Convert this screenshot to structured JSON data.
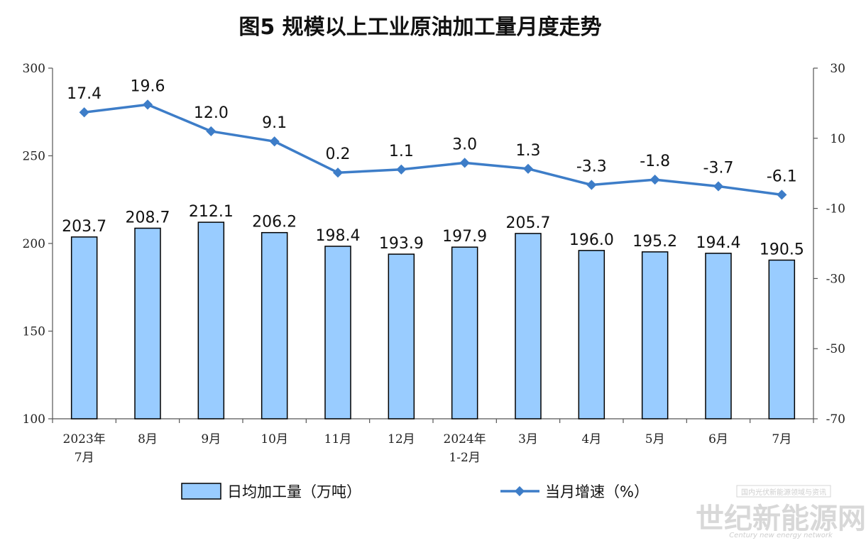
{
  "chart_data": {
    "type": "bar",
    "title": "图5  规模以上工业原油加工量月度走势",
    "categories": [
      [
        "2023年",
        "7月"
      ],
      [
        "8月"
      ],
      [
        "9月"
      ],
      [
        "10月"
      ],
      [
        "11月"
      ],
      [
        "12月"
      ],
      [
        "2024年",
        "1-2月"
      ],
      [
        "3月"
      ],
      [
        "4月"
      ],
      [
        "5月"
      ],
      [
        "6月"
      ],
      [
        "7月"
      ]
    ],
    "series": [
      {
        "name": "日均加工量（万吨）",
        "type": "bar",
        "axis": "left",
        "color": "#99ccff",
        "values": [
          203.7,
          208.7,
          212.1,
          206.2,
          198.4,
          193.9,
          197.9,
          205.7,
          196.0,
          195.2,
          194.4,
          190.5
        ],
        "labels": [
          "203.7",
          "208.7",
          "212.1",
          "206.2",
          "198.4",
          "193.9",
          "197.9",
          "205.7",
          "196.0",
          "195.2",
          "194.4",
          "190.5"
        ]
      },
      {
        "name": "当月增速（%）",
        "type": "line",
        "axis": "right",
        "color": "#3d7dc8",
        "values": [
          17.4,
          19.6,
          12.0,
          9.1,
          0.2,
          1.1,
          3.0,
          1.3,
          -3.3,
          -1.8,
          -3.7,
          -6.1
        ],
        "labels": [
          "17.4",
          "19.6",
          "12.0",
          "9.1",
          "0.2",
          "1.1",
          "3.0",
          "1.3",
          "-3.3",
          "-1.8",
          "-3.7",
          "-6.1"
        ]
      }
    ],
    "y_left": {
      "ylim": [
        100,
        300
      ],
      "ticks": [
        "100",
        "150",
        "200",
        "250",
        "300"
      ]
    },
    "y_right": {
      "ylim": [
        -70,
        30
      ],
      "ticks": [
        "-70",
        "-50",
        "-30",
        "-10",
        "10",
        "30"
      ]
    },
    "grid": false,
    "legend_position": "bottom"
  },
  "watermark": {
    "logo_text": "世纪新能源网",
    "tagline": "国内光伏新能源领域与资讯",
    "english": "Century new energy network"
  }
}
